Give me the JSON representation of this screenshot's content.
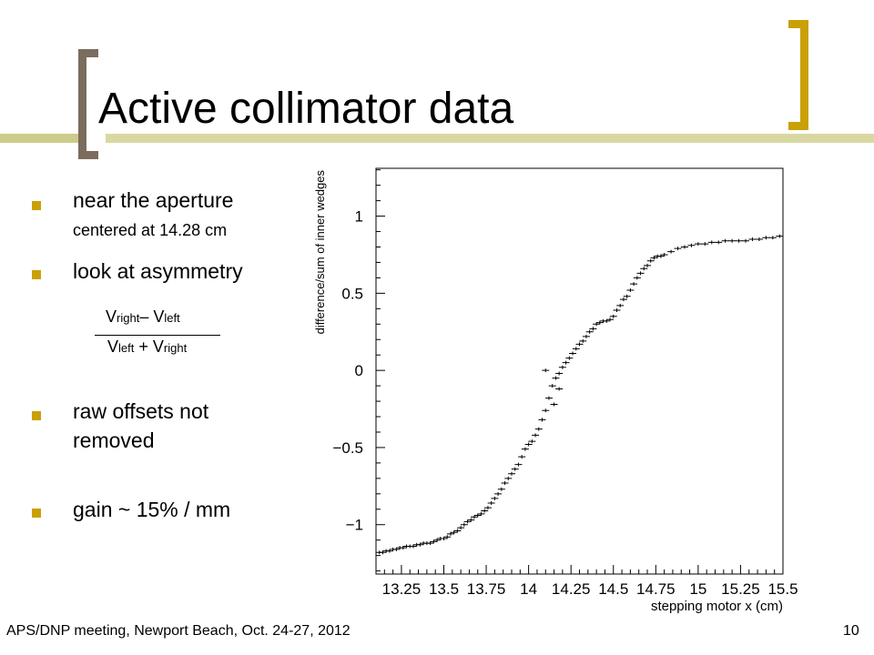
{
  "slide": {
    "title": "Active collimator data",
    "bullets": {
      "b1": "near the aperture",
      "b1_sub": "centered at 14.28 cm",
      "b2": "look at asymmetry",
      "b3_line1": "raw offsets not",
      "b3_line2": "removed",
      "b4": "gain ~ 15% / mm"
    },
    "formula": {
      "num_v1": "V",
      "num_sub1": "right",
      "num_op": "–  V",
      "num_sub2": "left",
      "den_v1": "V",
      "den_sub1": "left",
      "den_op": " + V",
      "den_sub2": "right"
    },
    "footer": "APS/DNP meeting, Newport Beach, Oct. 24-27, 2012",
    "page_number": "10",
    "colors": {
      "accent": "#c9a005",
      "bracket_left": "#7b6c5d",
      "band": "#d9d8a3"
    }
  },
  "chart_data": {
    "type": "scatter",
    "xlabel": "stepping motor x (cm)",
    "ylabel": "difference/sum of inner wedges",
    "xlim": [
      13.1,
      15.5
    ],
    "ylim": [
      -1.32,
      1.31
    ],
    "x_ticks": [
      13.25,
      13.5,
      13.75,
      14,
      14.25,
      14.5,
      14.75,
      15,
      15.25,
      15.5
    ],
    "x_tick_labels": [
      "13.25",
      "13.5",
      "13.75",
      "14",
      "14.25",
      "14.5",
      "14.75",
      "15",
      "15.25",
      "15.5"
    ],
    "y_ticks": [
      1,
      0.5,
      0,
      -0.5,
      -1
    ],
    "y_tick_labels": [
      "1",
      "0.5",
      "0",
      "−0.5",
      "−1"
    ],
    "grid": false,
    "marker": "cross",
    "series": [
      {
        "x": [
          13.12,
          13.14,
          13.16,
          13.18,
          13.2,
          13.22,
          13.24,
          13.26,
          13.28,
          13.3,
          13.32,
          13.34,
          13.36,
          13.38,
          13.4,
          13.42,
          13.44,
          13.46,
          13.48,
          13.5,
          13.52,
          13.54,
          13.56,
          13.58,
          13.6,
          13.62,
          13.64,
          13.66,
          13.68,
          13.7,
          13.72,
          13.74,
          13.76,
          13.78,
          13.8,
          13.82,
          13.84,
          13.86,
          13.88,
          13.9,
          13.92,
          13.94,
          13.96,
          13.98,
          14.0,
          14.02,
          14.04,
          14.06,
          14.08,
          14.1,
          14.12,
          14.14,
          14.16,
          14.18,
          14.2,
          14.22,
          14.24,
          14.26,
          14.28,
          14.3,
          14.32,
          14.34,
          14.36,
          14.38,
          14.4,
          14.42,
          14.44,
          14.46,
          14.48,
          14.5,
          14.52,
          14.54,
          14.56,
          14.58,
          14.6,
          14.62,
          14.64,
          14.66,
          14.68,
          14.7,
          14.72,
          14.74,
          14.76,
          14.78,
          14.8,
          14.84,
          14.88,
          14.92,
          14.96,
          15.0,
          15.04,
          15.08,
          15.12,
          15.16,
          15.2,
          15.24,
          15.28,
          15.32,
          15.36,
          15.4,
          15.44,
          15.48
        ],
        "y": [
          -1.18,
          -1.18,
          -1.17,
          -1.17,
          -1.16,
          -1.16,
          -1.15,
          -1.15,
          -1.14,
          -1.14,
          -1.14,
          -1.13,
          -1.13,
          -1.12,
          -1.12,
          -1.12,
          -1.11,
          -1.1,
          -1.09,
          -1.09,
          -1.08,
          -1.06,
          -1.05,
          -1.04,
          -1.02,
          -1.0,
          -0.98,
          -0.97,
          -0.95,
          -0.94,
          -0.93,
          -0.91,
          -0.89,
          -0.86,
          -0.83,
          -0.8,
          -0.77,
          -0.73,
          -0.7,
          -0.67,
          -0.64,
          -0.61,
          -0.56,
          -0.51,
          -0.48,
          -0.46,
          -0.42,
          -0.38,
          -0.32,
          -0.26,
          -0.18,
          -0.1,
          -0.05,
          -0.02,
          0.02,
          0.05,
          0.08,
          0.11,
          0.14,
          0.17,
          0.19,
          0.22,
          0.25,
          0.27,
          0.3,
          0.31,
          0.32,
          0.32,
          0.33,
          0.35,
          0.39,
          0.42,
          0.46,
          0.48,
          0.52,
          0.56,
          0.6,
          0.63,
          0.66,
          0.68,
          0.71,
          0.73,
          0.74,
          0.74,
          0.75,
          0.77,
          0.79,
          0.8,
          0.81,
          0.82,
          0.82,
          0.83,
          0.83,
          0.84,
          0.84,
          0.84,
          0.84,
          0.85,
          0.85,
          0.86,
          0.86,
          0.87
        ]
      },
      {
        "x": [
          14.1,
          14.15,
          14.18
        ],
        "y": [
          0.0,
          -0.22,
          -0.12
        ]
      }
    ]
  }
}
